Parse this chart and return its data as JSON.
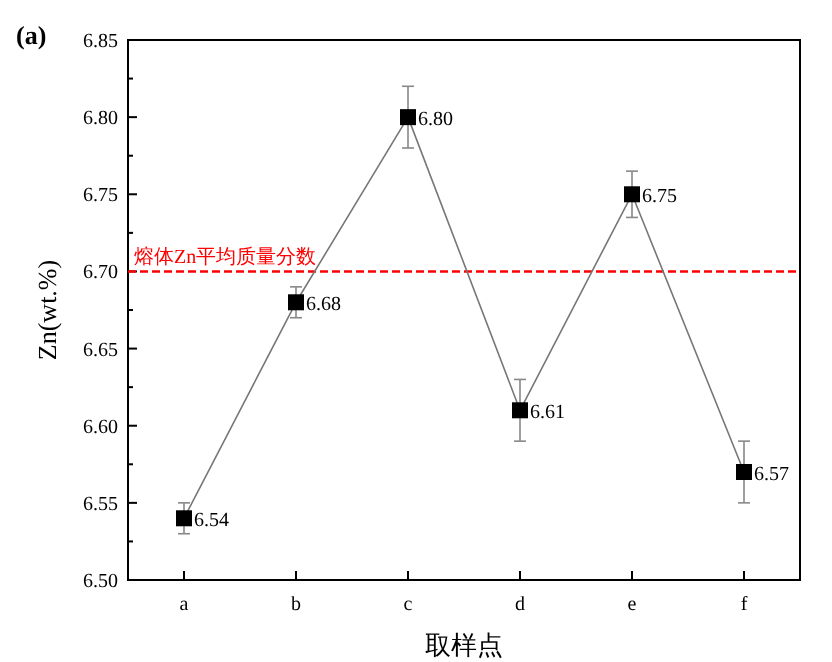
{
  "chart_data": {
    "type": "line",
    "title": "(a)",
    "xlabel": "取样点",
    "ylabel": "Zn(wt.%)",
    "categories": [
      "a",
      "b",
      "c",
      "d",
      "e",
      "f"
    ],
    "series": [
      {
        "color": "#000000",
        "values": [
          6.54,
          6.68,
          6.8,
          6.61,
          6.75,
          6.57
        ],
        "errors": [
          0.01,
          0.01,
          0.02,
          0.02,
          0.015,
          0.02
        ],
        "value_labels": [
          "6.54",
          "6.68",
          "6.80",
          "6.61",
          "6.75",
          "6.57"
        ]
      }
    ],
    "ylim": [
      6.5,
      6.85
    ],
    "yticks": [
      {
        "value": 6.5,
        "label": "6.50"
      },
      {
        "value": 6.525,
        "label": null
      },
      6.55,
      {
        "value": 6.575,
        "label": null
      },
      {
        "value": 6.6,
        "label": "6.60"
      },
      {
        "value": 6.625,
        "label": null
      },
      6.65,
      {
        "value": 6.675,
        "label": null
      },
      {
        "value": 6.7,
        "label": "6.70"
      },
      {
        "value": 6.725,
        "label": null
      },
      6.75,
      {
        "value": 6.775,
        "label": null
      },
      {
        "value": 6.8,
        "label": "6.80"
      },
      {
        "value": 6.825,
        "label": null
      },
      6.85
    ],
    "ref_lines": [
      {
        "axis": "y",
        "value": 6.7,
        "label": "熔体Zn平均质量分数",
        "color": "#ff0000",
        "line_style": "dashed"
      }
    ],
    "marker": "square",
    "line_style": "solid",
    "grid": false
  }
}
